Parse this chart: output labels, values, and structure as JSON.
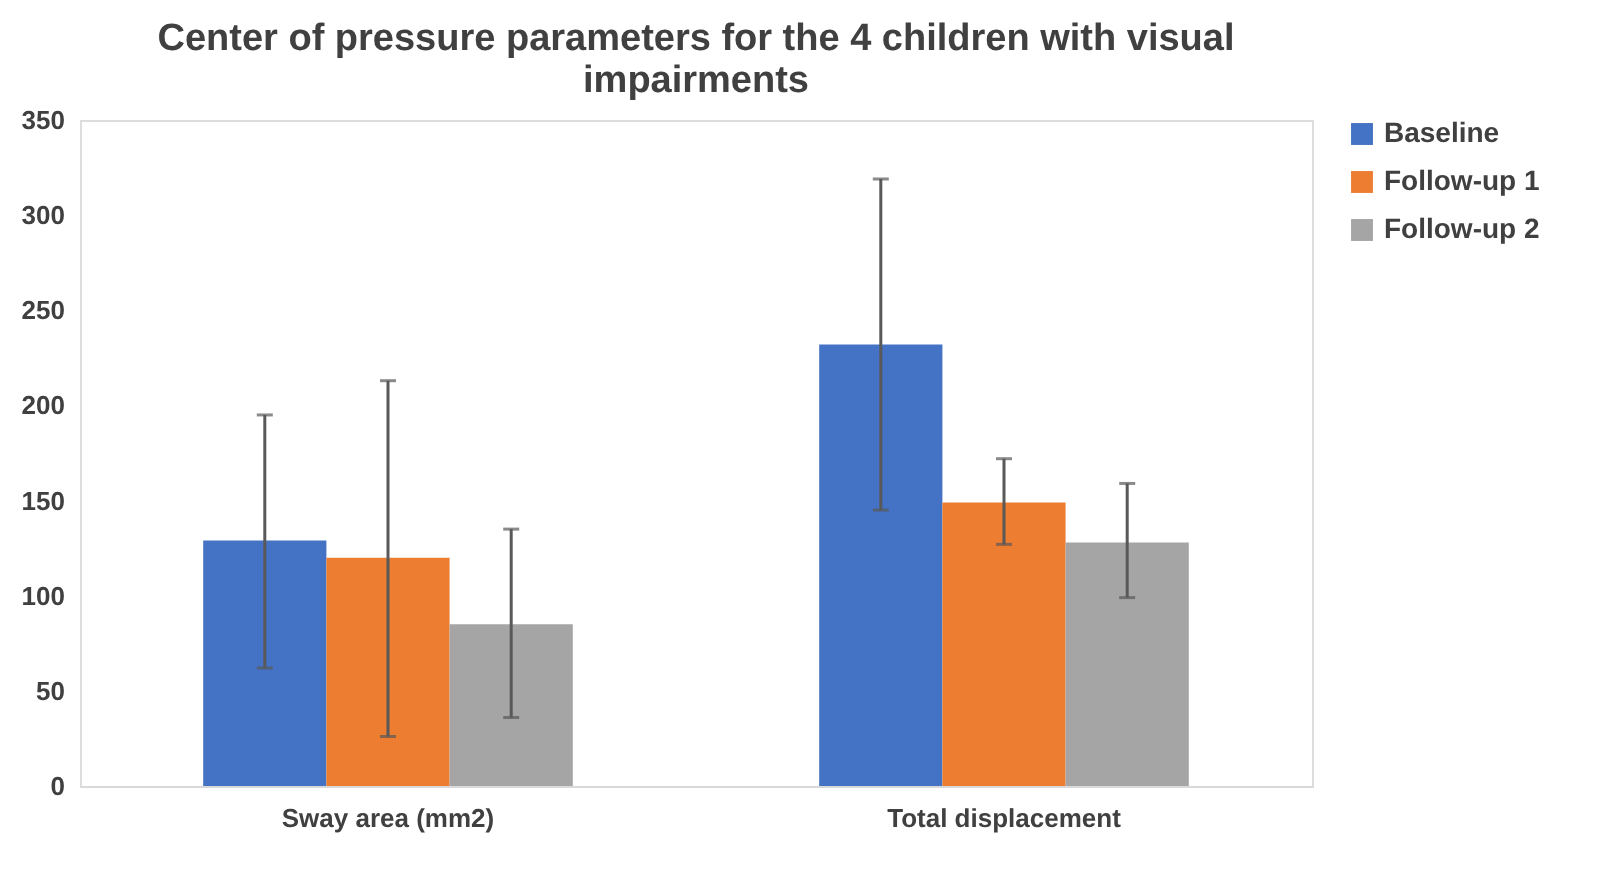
{
  "chart_data": {
    "type": "bar",
    "title": "Center of pressure parameters for the 4 children with visual impairments",
    "categories": [
      "Sway area (mm2)",
      "Total displacement"
    ],
    "series": [
      {
        "name": "Baseline",
        "color": "#4472c4",
        "values": [
          129,
          232
        ],
        "errors": [
          [
            62,
            195
          ],
          [
            145,
            319
          ]
        ]
      },
      {
        "name": "Follow-up 1",
        "color": "#ed7d31",
        "values": [
          120,
          149
        ],
        "errors": [
          [
            26,
            213
          ],
          [
            127,
            172
          ]
        ]
      },
      {
        "name": "Follow-up 2",
        "color": "#a5a5a5",
        "values": [
          85,
          128
        ],
        "errors": [
          [
            36,
            135
          ],
          [
            99,
            159
          ]
        ]
      }
    ],
    "ylim": [
      0,
      350
    ],
    "yticks": [
      0,
      50,
      100,
      150,
      200,
      250,
      300,
      350
    ],
    "grid": false,
    "legend": "right"
  }
}
